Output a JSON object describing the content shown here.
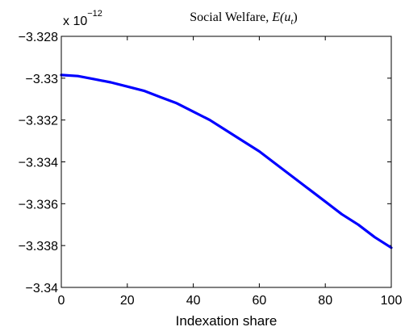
{
  "chart_data": {
    "type": "line",
    "title_text": "Social Welfare, ",
    "title_math": "E(u",
    "title_math_sub": "t",
    "title_math_close": ")",
    "xlabel": "Indexation share",
    "ylabel": "",
    "y_multiplier": "x 10",
    "y_multiplier_exp": "−12",
    "xlim": [
      0,
      100
    ],
    "ylim": [
      -3.34,
      -3.328
    ],
    "x_ticks": [
      0,
      20,
      40,
      60,
      80,
      100
    ],
    "x_tick_labels": [
      "0",
      "20",
      "40",
      "60",
      "80",
      "100"
    ],
    "y_ticks": [
      -3.328,
      -3.33,
      -3.332,
      -3.334,
      -3.336,
      -3.338,
      -3.34
    ],
    "y_tick_labels": [
      "−3.328",
      "−3.33",
      "−3.332",
      "−3.334",
      "−3.336",
      "−3.338",
      "−3.34"
    ],
    "grid": false,
    "line_color": "#0000ff",
    "series": [
      {
        "x": [
          0,
          5,
          10,
          15,
          20,
          25,
          30,
          35,
          40,
          45,
          50,
          55,
          60,
          65,
          70,
          75,
          80,
          85,
          90,
          95,
          100
        ],
        "y": [
          -3.32985,
          -3.3299,
          -3.33005,
          -3.3302,
          -3.3304,
          -3.3306,
          -3.3309,
          -3.3312,
          -3.3316,
          -3.332,
          -3.3325,
          -3.333,
          -3.3335,
          -3.3341,
          -3.3347,
          -3.3353,
          -3.3359,
          -3.3365,
          -3.337,
          -3.3376,
          -3.3381
        ]
      }
    ]
  }
}
